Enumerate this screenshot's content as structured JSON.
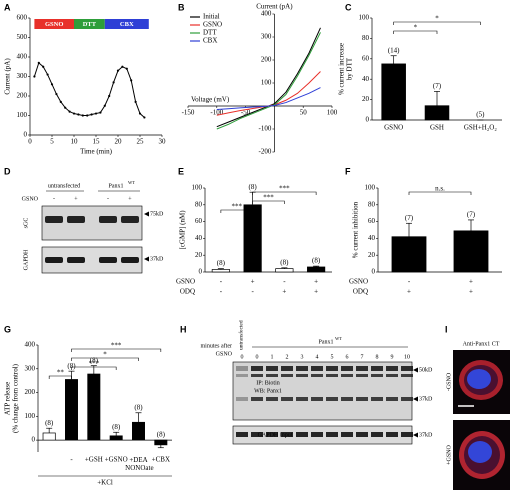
{
  "chart_data": [
    {
      "panel": "A",
      "type": "line",
      "markers": true,
      "ylabel": [
        "Current (pA)"
      ],
      "xlabel": "Time (min)",
      "x": [
        1,
        2,
        3,
        4,
        5,
        6,
        7,
        8,
        9,
        10,
        11,
        12,
        13,
        14,
        15,
        16,
        17,
        18,
        19,
        20,
        21,
        22,
        23,
        24,
        25,
        26
      ],
      "values": [
        300,
        370,
        350,
        310,
        260,
        210,
        170,
        140,
        120,
        110,
        105,
        100,
        100,
        105,
        110,
        115,
        150,
        200,
        270,
        330,
        350,
        340,
        280,
        170,
        110,
        90
      ],
      "color": "#000000",
      "xlim": [
        0,
        30
      ],
      "xticks": [
        0,
        5,
        10,
        15,
        20,
        25,
        30
      ],
      "ylim": [
        0,
        600
      ],
      "yticks": [
        0,
        100,
        200,
        300,
        400,
        500,
        600
      ],
      "periods": [
        {
          "label": "GSNO",
          "start": 1,
          "end": 10,
          "color": "#e8302a"
        },
        {
          "label": "DTT",
          "start": 10,
          "end": 17,
          "color": "#2e9e3a"
        },
        {
          "label": "CBX",
          "start": 17,
          "end": 27,
          "color": "#2e3fd6"
        }
      ]
    },
    {
      "panel": "B",
      "type": "line",
      "axes_cross_zero": true,
      "legend": "upper left",
      "ylabel": [
        "Current (pA)"
      ],
      "xlabel": "Voltage (mV)",
      "x": [
        -100,
        -80,
        -60,
        -40,
        -20,
        0,
        20,
        40,
        60,
        80
      ],
      "series": [
        {
          "name": "Initial",
          "color": "#000000",
          "values": [
            -90,
            -70,
            -50,
            -30,
            -10,
            10,
            60,
            140,
            230,
            340
          ]
        },
        {
          "name": "GSNO",
          "color": "#e8302a",
          "values": [
            -40,
            -30,
            -20,
            -12,
            -4,
            5,
            25,
            55,
            100,
            150
          ]
        },
        {
          "name": "DTT",
          "color": "#2e9e3a",
          "values": [
            -100,
            -80,
            -55,
            -35,
            -15,
            5,
            50,
            130,
            220,
            320
          ]
        },
        {
          "name": "CBX",
          "color": "#2e3fd6",
          "values": [
            -15,
            -12,
            -8,
            -5,
            -2,
            2,
            15,
            35,
            55,
            80
          ]
        }
      ],
      "xlim": [
        -150,
        100
      ],
      "xticks": [
        -150,
        -100,
        -50,
        50,
        100
      ],
      "ylim": [
        -200,
        400
      ],
      "yticks": [
        -200,
        -100,
        100,
        200,
        300,
        400
      ]
    },
    {
      "panel": "C",
      "type": "bar",
      "ylabel": [
        "% current increase",
        "by DTT"
      ],
      "categories": [
        "GSNO",
        "GSH",
        "GSH+H₂O₂"
      ],
      "values": [
        55,
        14,
        0
      ],
      "errors": [
        8,
        14,
        0
      ],
      "colors": [
        "#000000",
        "#000000",
        "#000000"
      ],
      "n_labels": [
        "(14)",
        "(7)",
        "(5)"
      ],
      "significance": [
        {
          "from": 0,
          "to": 1,
          "label": "*"
        },
        {
          "from": 0,
          "to": 2,
          "label": "*"
        }
      ],
      "ylim": [
        0,
        100
      ],
      "yticks": [
        0,
        20,
        40,
        60,
        80,
        100
      ]
    },
    {
      "panel": "E",
      "type": "bar",
      "ylabel": [
        "[cGMP] (nM)"
      ],
      "values": [
        3,
        80,
        4,
        6
      ],
      "errors": [
        1,
        15,
        1,
        1
      ],
      "colors": [
        "#ffffff",
        "#000000",
        "#ffffff",
        "#000000"
      ],
      "n_labels": [
        "(8)",
        "(8)",
        "(8)",
        "(8)"
      ],
      "conditions": [
        {
          "name": "GSNO",
          "values": [
            "-",
            "+",
            "-",
            "+"
          ]
        },
        {
          "name": "ODQ",
          "values": [
            "-",
            "-",
            "+",
            "+"
          ]
        }
      ],
      "significance": [
        {
          "from": 0,
          "to": 1,
          "label": "***"
        },
        {
          "from": 1,
          "to": 2,
          "label": "***"
        },
        {
          "from": 1,
          "to": 3,
          "label": "***"
        }
      ],
      "ylim": [
        0,
        100
      ],
      "yticks": [
        0,
        20,
        40,
        60,
        80,
        100
      ]
    },
    {
      "panel": "F",
      "type": "bar",
      "ylabel": [
        "% current inhibition"
      ],
      "values": [
        42,
        49
      ],
      "errors": [
        16,
        13
      ],
      "colors": [
        "#000000",
        "#000000"
      ],
      "n_labels": [
        "(7)",
        "(7)"
      ],
      "conditions": [
        {
          "name": "GSNO",
          "values": [
            "-",
            "+"
          ]
        },
        {
          "name": "ODQ",
          "values": [
            "+",
            "+"
          ]
        }
      ],
      "significance": [
        {
          "from": 0,
          "to": 1,
          "label": "n.s."
        }
      ],
      "ylim": [
        0,
        100
      ],
      "yticks": [
        0,
        20,
        40,
        60,
        80,
        100
      ]
    },
    {
      "panel": "G",
      "type": "bar",
      "ylabel": [
        "ATP release",
        "(% change from control)"
      ],
      "categories": [
        null,
        "-",
        "+GSH",
        "+GSNO",
        "+DEA NONOate",
        "+CBX"
      ],
      "values": [
        30,
        255,
        278,
        18,
        75,
        -20
      ],
      "errors": [
        20,
        35,
        35,
        15,
        40,
        12
      ],
      "colors": [
        "#ffffff",
        "#000000",
        "#000000",
        "#000000",
        "#000000",
        "#000000"
      ],
      "n_labels": [
        "(8)",
        "(8)",
        "(8)",
        "(8)",
        "(8)",
        "(8)"
      ],
      "group_label": "+KCl",
      "significance": [
        {
          "from": 0,
          "to": 1,
          "label": "**"
        },
        {
          "from": 1,
          "to": 3,
          "label": "***"
        },
        {
          "from": 1,
          "to": 4,
          "label": "*"
        },
        {
          "from": 1,
          "to": 5,
          "label": "***"
        }
      ],
      "ylim": [
        -50,
        400
      ],
      "yticks": [
        0,
        100,
        200,
        300,
        400
      ]
    }
  ],
  "blot_d": {
    "panel": "D",
    "groups": [
      "untransfected",
      "Panx1"
    ],
    "group_superscript": "WT",
    "treatment": "GSNO",
    "lanes": [
      "-",
      "+",
      "-",
      "+"
    ],
    "rows": [
      "sGC",
      "GAPDH"
    ],
    "markers": [
      "75kD",
      "37kD"
    ]
  },
  "blot_h": {
    "panel": "H",
    "row_label": [
      "minutes after",
      "GSNO"
    ],
    "control": "untransfected",
    "group": "Panx1",
    "group_superscript": "WT",
    "lanes": [
      "0",
      "0",
      "1",
      "2",
      "3",
      "4",
      "5",
      "6",
      "7",
      "8",
      "9",
      "10"
    ],
    "blot_labels": [
      "IP: Biotin",
      "WB: Panx1"
    ],
    "input_label": "GAPDH Input",
    "markers": [
      "50kD",
      "37kD",
      "37kD"
    ]
  },
  "image_i": {
    "panel": "I",
    "title": "Anti-Panx1 CT",
    "rows": [
      "-GSNO",
      "+GSNO"
    ]
  }
}
